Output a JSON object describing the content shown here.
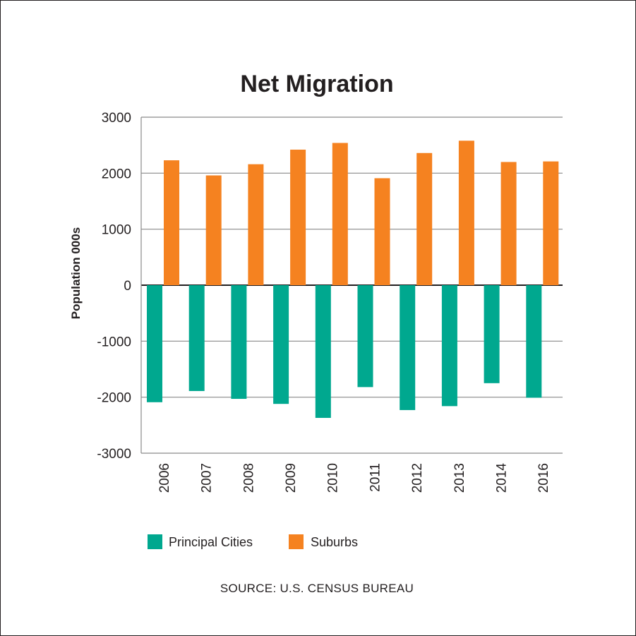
{
  "chart_data": {
    "type": "bar",
    "title": "Net Migration",
    "xlabel": "",
    "ylabel": "Population 000s",
    "ylim": [
      -3000,
      3000
    ],
    "yticks": [
      3000,
      2000,
      1000,
      0,
      -1000,
      -2000,
      -3000
    ],
    "y_tick_labels": [
      "3000",
      "2000",
      "1000",
      "0",
      "-1000",
      "-2000",
      "-3000"
    ],
    "grid": true,
    "legend_position": "bottom",
    "categories": [
      "2006",
      "2007",
      "2008",
      "2009",
      "2010",
      "2011",
      "2012",
      "2013",
      "2014",
      "2016"
    ],
    "series": [
      {
        "name": "Principal Cities",
        "color": "#00a88f",
        "values": [
          -2090,
          -1890,
          -2030,
          -2120,
          -2370,
          -1820,
          -2230,
          -2160,
          -1750,
          -2010
        ]
      },
      {
        "name": "Suburbs",
        "color": "#f58220",
        "values": [
          2230,
          1960,
          2160,
          2420,
          2540,
          1910,
          2360,
          2580,
          2200,
          2210
        ]
      }
    ]
  },
  "source": "SOURCE: U.S. CENSUS BUREAU"
}
